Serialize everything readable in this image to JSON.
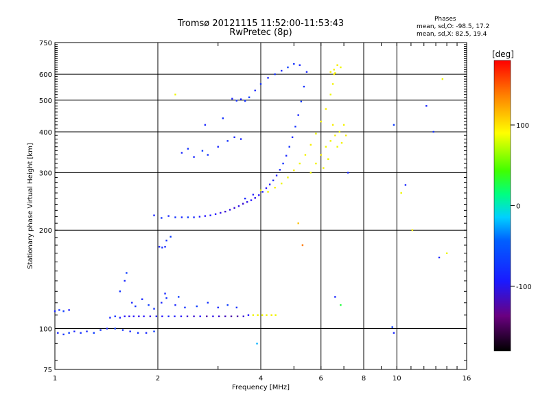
{
  "title_line1": "Tromsø 20121115 11:52:00-11:53:43",
  "title_line2": "RwPretec (8p)",
  "phases": {
    "heading": "Phases",
    "line_o": "mean, sd,O: -98.5, 17.2",
    "line_x": "mean, sd,X:  82.5, 19.4"
  },
  "colorbar": {
    "unit_label": "[deg]",
    "ticks": [
      {
        "value": 100,
        "label": "100"
      },
      {
        "value": 0,
        "label": "0"
      },
      {
        "value": -100,
        "label": "-100"
      }
    ],
    "range": [
      -180,
      180
    ]
  },
  "chart_data": {
    "type": "scatter",
    "xlabel": "Frequency [MHz]",
    "ylabel": "Stationary phase Virtual Height [km]",
    "xscale": "log",
    "yscale": "log",
    "xlim": [
      1,
      16
    ],
    "ylim": [
      75,
      750
    ],
    "x_ticks": [
      {
        "value": 1,
        "label": "1"
      },
      {
        "value": 2,
        "label": "2"
      },
      {
        "value": 4,
        "label": "4"
      },
      {
        "value": 6,
        "label": "6"
      },
      {
        "value": 8,
        "label": "8"
      },
      {
        "value": 10,
        "label": "10"
      },
      {
        "value": 16,
        "label": "16"
      }
    ],
    "y_ticks": [
      {
        "value": 75,
        "label": "75"
      },
      {
        "value": 100,
        "label": "100"
      },
      {
        "value": 200,
        "label": "200"
      },
      {
        "value": 300,
        "label": "300"
      },
      {
        "value": 400,
        "label": "400"
      },
      {
        "value": 500,
        "label": "500"
      },
      {
        "value": 600,
        "label": "600"
      },
      {
        "value": 750,
        "label": "750"
      }
    ],
    "x_gridlines": [
      2,
      4,
      6,
      8,
      10
    ],
    "y_gridlines": [
      100,
      200,
      300,
      400,
      500,
      600
    ],
    "points": [
      [
        1.0,
        113,
        -110
      ],
      [
        1.03,
        114,
        -105
      ],
      [
        1.06,
        113,
        -100
      ],
      [
        1.1,
        114,
        -115
      ],
      [
        1.02,
        97,
        -110
      ],
      [
        1.06,
        96,
        -105
      ],
      [
        1.1,
        97,
        -100
      ],
      [
        1.14,
        98,
        -110
      ],
      [
        1.19,
        97,
        -105
      ],
      [
        1.24,
        98,
        -110
      ],
      [
        1.3,
        97,
        -100
      ],
      [
        1.36,
        99,
        -105
      ],
      [
        1.42,
        100,
        -110
      ],
      [
        1.5,
        100,
        -100
      ],
      [
        1.58,
        99,
        -105
      ],
      [
        1.66,
        98,
        -110
      ],
      [
        1.75,
        97,
        -105
      ],
      [
        1.85,
        97,
        -110
      ],
      [
        1.95,
        98,
        -100
      ],
      [
        1.45,
        108,
        -110
      ],
      [
        1.5,
        109,
        -105
      ],
      [
        1.55,
        108,
        -115
      ],
      [
        1.6,
        109,
        -120
      ],
      [
        1.65,
        109,
        -125
      ],
      [
        1.7,
        109,
        -120
      ],
      [
        1.76,
        109,
        -125
      ],
      [
        1.82,
        109,
        -120
      ],
      [
        1.9,
        109,
        -125
      ],
      [
        1.98,
        109,
        -115
      ],
      [
        2.06,
        109,
        -120
      ],
      [
        2.15,
        109,
        -110
      ],
      [
        2.24,
        109,
        -115
      ],
      [
        2.34,
        109,
        -120
      ],
      [
        2.44,
        109,
        -130
      ],
      [
        2.55,
        109,
        -130
      ],
      [
        2.66,
        109,
        -120
      ],
      [
        2.78,
        109,
        -140
      ],
      [
        2.9,
        109,
        -125
      ],
      [
        3.02,
        109,
        -130
      ],
      [
        3.15,
        109,
        -135
      ],
      [
        3.28,
        109,
        -140
      ],
      [
        3.42,
        109,
        -140
      ],
      [
        3.56,
        109,
        -130
      ],
      [
        3.68,
        110,
        -120
      ],
      [
        3.8,
        110,
        100
      ],
      [
        3.92,
        110,
        105
      ],
      [
        4.04,
        110,
        100
      ],
      [
        4.16,
        110,
        105
      ],
      [
        4.3,
        110,
        110
      ],
      [
        4.42,
        110,
        100
      ],
      [
        1.55,
        130,
        -105
      ],
      [
        1.6,
        140,
        -110
      ],
      [
        1.62,
        148,
        -100
      ],
      [
        1.68,
        120,
        -110
      ],
      [
        1.72,
        117,
        -105
      ],
      [
        1.8,
        123,
        -110
      ],
      [
        1.88,
        118,
        -100
      ],
      [
        1.95,
        115,
        -105
      ],
      [
        2.05,
        120,
        -110
      ],
      [
        2.12,
        124,
        -105
      ],
      [
        2.25,
        118,
        -110
      ],
      [
        2.4,
        116,
        -105
      ],
      [
        2.6,
        117,
        -100
      ],
      [
        2.8,
        120,
        -105
      ],
      [
        3.0,
        116,
        -110
      ],
      [
        3.2,
        118,
        -100
      ],
      [
        3.4,
        116,
        -105
      ],
      [
        2.1,
        128,
        -110
      ],
      [
        2.3,
        125,
        -100
      ],
      [
        2.02,
        178,
        -110
      ],
      [
        2.06,
        177,
        -105
      ],
      [
        2.1,
        178,
        -110
      ],
      [
        2.12,
        186,
        -105
      ],
      [
        2.18,
        191,
        -100
      ],
      [
        1.95,
        222,
        -110
      ],
      [
        2.05,
        218,
        -105
      ],
      [
        2.15,
        221,
        -110
      ],
      [
        2.25,
        219,
        -105
      ],
      [
        2.35,
        219,
        -110
      ],
      [
        2.45,
        219,
        -100
      ],
      [
        2.55,
        219,
        -110
      ],
      [
        2.65,
        220,
        -115
      ],
      [
        2.75,
        221,
        -120
      ],
      [
        2.85,
        222,
        -115
      ],
      [
        2.95,
        224,
        -120
      ],
      [
        3.05,
        226,
        -125
      ],
      [
        3.15,
        228,
        -130
      ],
      [
        3.25,
        231,
        -125
      ],
      [
        3.35,
        234,
        -130
      ],
      [
        3.45,
        237,
        -125
      ],
      [
        3.55,
        241,
        -130
      ],
      [
        3.65,
        244,
        -125
      ],
      [
        3.75,
        247,
        -120
      ],
      [
        3.85,
        251,
        -125
      ],
      [
        3.95,
        256,
        -120
      ],
      [
        4.05,
        262,
        -115
      ],
      [
        4.15,
        269,
        -120
      ],
      [
        4.25,
        276,
        -115
      ],
      [
        4.35,
        284,
        -110
      ],
      [
        4.45,
        294,
        -115
      ],
      [
        4.55,
        306,
        -110
      ],
      [
        4.65,
        320,
        -105
      ],
      [
        4.75,
        338,
        -110
      ],
      [
        4.85,
        360,
        -105
      ],
      [
        4.95,
        385,
        -110
      ],
      [
        5.05,
        415,
        -105
      ],
      [
        5.15,
        450,
        -110
      ],
      [
        5.25,
        495,
        -100
      ],
      [
        5.35,
        550,
        -105
      ],
      [
        5.45,
        610,
        -110
      ],
      [
        3.6,
        250,
        -110
      ],
      [
        3.8,
        257,
        -115
      ],
      [
        4.0,
        265,
        100
      ],
      [
        4.2,
        262,
        105
      ],
      [
        4.4,
        270,
        110
      ],
      [
        4.6,
        278,
        100
      ],
      [
        4.8,
        290,
        105
      ],
      [
        5.0,
        305,
        110
      ],
      [
        5.2,
        320,
        100
      ],
      [
        5.4,
        340,
        105
      ],
      [
        5.6,
        365,
        110
      ],
      [
        5.8,
        395,
        100
      ],
      [
        6.0,
        430,
        105
      ],
      [
        6.2,
        470,
        110
      ],
      [
        6.4,
        520,
        100
      ],
      [
        6.5,
        560,
        105
      ],
      [
        6.55,
        600,
        110
      ],
      [
        5.6,
        300,
        100
      ],
      [
        5.8,
        320,
        105
      ],
      [
        6.0,
        340,
        110
      ],
      [
        6.2,
        360,
        100
      ],
      [
        6.4,
        375,
        105
      ],
      [
        6.6,
        390,
        110
      ],
      [
        6.8,
        400,
        100
      ],
      [
        7.0,
        420,
        105
      ],
      [
        6.5,
        420,
        110
      ],
      [
        6.7,
        360,
        100
      ],
      [
        6.9,
        370,
        105
      ],
      [
        7.1,
        390,
        110
      ],
      [
        6.3,
        330,
        100
      ],
      [
        6.1,
        310,
        105
      ],
      [
        6.4,
        610,
        110
      ],
      [
        6.55,
        620,
        105
      ],
      [
        6.7,
        640,
        110
      ],
      [
        6.85,
        630,
        100
      ],
      [
        6.6,
        605,
        105
      ],
      [
        3.3,
        505,
        -110
      ],
      [
        3.4,
        498,
        -105
      ],
      [
        3.5,
        503,
        -110
      ],
      [
        3.6,
        497,
        -105
      ],
      [
        3.7,
        510,
        -100
      ],
      [
        3.85,
        535,
        -110
      ],
      [
        4.0,
        560,
        -105
      ],
      [
        4.2,
        585,
        -110
      ],
      [
        4.4,
        600,
        -105
      ],
      [
        4.6,
        615,
        -110
      ],
      [
        4.8,
        630,
        -100
      ],
      [
        5.0,
        645,
        -105
      ],
      [
        5.2,
        640,
        -110
      ],
      [
        2.35,
        345,
        -110
      ],
      [
        2.45,
        355,
        -105
      ],
      [
        2.55,
        335,
        -110
      ],
      [
        2.7,
        350,
        -100
      ],
      [
        2.8,
        340,
        -105
      ],
      [
        3.0,
        360,
        -110
      ],
      [
        3.2,
        375,
        -105
      ],
      [
        3.35,
        385,
        -110
      ],
      [
        2.75,
        420,
        -110
      ],
      [
        3.1,
        440,
        -105
      ],
      [
        3.5,
        380,
        -110
      ],
      [
        2.25,
        520,
        100
      ],
      [
        7.2,
        300,
        -110
      ],
      [
        9.8,
        420,
        -100
      ],
      [
        10.3,
        260,
        100
      ],
      [
        10.6,
        275,
        -110
      ],
      [
        12.2,
        480,
        -110
      ],
      [
        12.8,
        400,
        -105
      ],
      [
        13.6,
        580,
        100
      ],
      [
        13.3,
        165,
        -110
      ],
      [
        14.0,
        170,
        100
      ],
      [
        11.1,
        200,
        110
      ],
      [
        6.6,
        125,
        -110
      ],
      [
        6.85,
        118,
        20
      ],
      [
        9.8,
        97,
        -110
      ],
      [
        9.7,
        101,
        -100
      ],
      [
        5.3,
        180,
        150
      ],
      [
        5.15,
        210,
        130
      ],
      [
        3.9,
        90,
        -50
      ]
    ]
  }
}
